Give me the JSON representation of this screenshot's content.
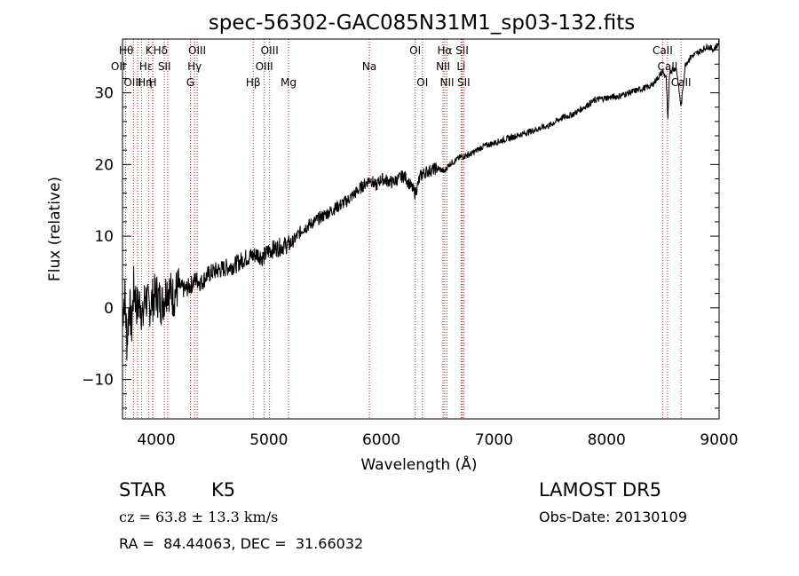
{
  "chart_data": {
    "type": "line",
    "title": "spec-56302-GAC085N31M1_sp03-132.fits",
    "xlabel": "Wavelength (Å)",
    "ylabel": "Flux (relative)",
    "xlim": [
      3700,
      9000
    ],
    "ylim": [
      -15.5,
      37.5
    ],
    "x_ticks": [
      4000,
      5000,
      6000,
      7000,
      8000,
      9000
    ],
    "y_ticks": [
      -10,
      0,
      10,
      20,
      30
    ],
    "grid": false,
    "series": [
      {
        "color": "#000000",
        "points": [
          [
            3700,
            -1
          ],
          [
            3720,
            2
          ],
          [
            3740,
            -5
          ],
          [
            3760,
            1
          ],
          [
            3780,
            -3
          ],
          [
            3800,
            3
          ],
          [
            3830,
            0
          ],
          [
            3860,
            1
          ],
          [
            3880,
            -2
          ],
          [
            3900,
            2
          ],
          [
            3930,
            0
          ],
          [
            3960,
            1
          ],
          [
            4000,
            2
          ],
          [
            4050,
            0.5
          ],
          [
            4100,
            3
          ],
          [
            4150,
            1.5
          ],
          [
            4200,
            3
          ],
          [
            4250,
            2.5
          ],
          [
            4300,
            3
          ],
          [
            4350,
            4
          ],
          [
            4400,
            3.5
          ],
          [
            4450,
            4.5
          ],
          [
            4500,
            5
          ],
          [
            4600,
            5.5
          ],
          [
            4700,
            6
          ],
          [
            4800,
            7
          ],
          [
            4900,
            7.5
          ],
          [
            4950,
            7
          ],
          [
            5000,
            8
          ],
          [
            5100,
            8.5
          ],
          [
            5200,
            9
          ],
          [
            5300,
            11
          ],
          [
            5400,
            12
          ],
          [
            5500,
            13
          ],
          [
            5600,
            14
          ],
          [
            5700,
            15
          ],
          [
            5800,
            16.5
          ],
          [
            5900,
            18
          ],
          [
            5950,
            17
          ],
          [
            6000,
            18
          ],
          [
            6100,
            17.5
          ],
          [
            6200,
            18.5
          ],
          [
            6300,
            16
          ],
          [
            6350,
            18.5
          ],
          [
            6400,
            19
          ],
          [
            6500,
            19.5
          ],
          [
            6560,
            19
          ],
          [
            6600,
            20
          ],
          [
            6700,
            21
          ],
          [
            6800,
            21.5
          ],
          [
            6900,
            22.5
          ],
          [
            7000,
            23
          ],
          [
            7100,
            23.5
          ],
          [
            7200,
            24
          ],
          [
            7300,
            24.5
          ],
          [
            7400,
            25
          ],
          [
            7500,
            25.5
          ],
          [
            7600,
            26.5
          ],
          [
            7700,
            27
          ],
          [
            7800,
            28
          ],
          [
            7900,
            29
          ],
          [
            8000,
            29.3
          ],
          [
            8100,
            29.5
          ],
          [
            8200,
            30
          ],
          [
            8300,
            30.5
          ],
          [
            8400,
            31
          ],
          [
            8450,
            32
          ],
          [
            8500,
            33
          ],
          [
            8530,
            32
          ],
          [
            8545,
            26
          ],
          [
            8560,
            33
          ],
          [
            8620,
            33.5
          ],
          [
            8662,
            28
          ],
          [
            8700,
            34
          ],
          [
            8750,
            35
          ],
          [
            8800,
            35.5
          ],
          [
            8850,
            36
          ],
          [
            8900,
            36.5
          ],
          [
            8950,
            36
          ],
          [
            9000,
            37
          ]
        ]
      }
    ],
    "lines": [
      {
        "label": "Hθ",
        "x": 3797,
        "row": 0,
        "anchor": "end"
      },
      {
        "label": "OII",
        "x": 3727,
        "row": 1,
        "anchor": "end"
      },
      {
        "label": "OIII",
        "x": 3869,
        "row": 2,
        "anchor": "end"
      },
      {
        "label": "Hη",
        "x": 3835,
        "row": 2,
        "anchor": "start"
      },
      {
        "label": "K",
        "x": 3934,
        "row": 0,
        "anchor": "middle"
      },
      {
        "label": "Hε",
        "x": 3970,
        "row": 1,
        "anchor": "end"
      },
      {
        "label": "H",
        "x": 3968,
        "row": 2,
        "anchor": "middle"
      },
      {
        "label": "Hδ",
        "x": 4102,
        "row": 0,
        "anchor": "end"
      },
      {
        "label": "SII",
        "x": 4072,
        "row": 1,
        "anchor": "middle"
      },
      {
        "label": "OIII",
        "x": 4363,
        "row": 0,
        "anchor": "middle"
      },
      {
        "label": "Hγ",
        "x": 4340,
        "row": 1,
        "anchor": "middle"
      },
      {
        "label": "G",
        "x": 4304,
        "row": 2,
        "anchor": "middle"
      },
      {
        "label": "OIII",
        "x": 5007,
        "row": 0,
        "anchor": "middle"
      },
      {
        "label": "OIII",
        "x": 4959,
        "row": 1,
        "anchor": "middle"
      },
      {
        "label": "Hβ",
        "x": 4861,
        "row": 2,
        "anchor": "middle"
      },
      {
        "label": "Mg",
        "x": 5175,
        "row": 2,
        "anchor": "middle"
      },
      {
        "label": "Na",
        "x": 5893,
        "row": 1,
        "anchor": "middle"
      },
      {
        "label": "OI",
        "x": 6300,
        "row": 0,
        "anchor": "middle"
      },
      {
        "label": "OI",
        "x": 6364,
        "row": 2,
        "anchor": "middle"
      },
      {
        "label": "Hα",
        "x": 6563,
        "row": 0,
        "anchor": "middle"
      },
      {
        "label": "NII",
        "x": 6548,
        "row": 1,
        "anchor": "middle"
      },
      {
        "label": "NII",
        "x": 6583,
        "row": 2,
        "anchor": "middle"
      },
      {
        "label": "SII",
        "x": 6717,
        "row": 0,
        "anchor": "middle"
      },
      {
        "label": "Li",
        "x": 6708,
        "row": 1,
        "anchor": "middle"
      },
      {
        "label": "SII",
        "x": 6731,
        "row": 2,
        "anchor": "middle"
      },
      {
        "label": "CaII",
        "x": 8498,
        "row": 0,
        "anchor": "middle"
      },
      {
        "label": "CaII",
        "x": 8542,
        "row": 1,
        "anchor": "middle"
      },
      {
        "label": "CaII",
        "x": 8662,
        "row": 2,
        "anchor": "middle"
      }
    ],
    "line_color": "#b22222"
  },
  "info": {
    "object_type": "STAR",
    "subclass": "K5",
    "survey": "LAMOST DR5",
    "cz": "cz = 63.8 ± 13.3 km/s",
    "obs_date": "Obs-Date: 20130109",
    "coords": "RA =  84.44063, DEC =  31.66032"
  }
}
